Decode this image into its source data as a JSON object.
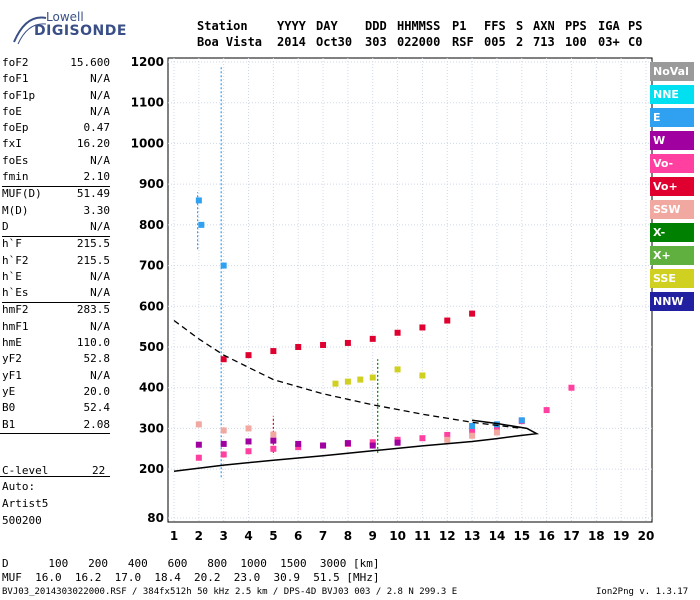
{
  "logo": {
    "top": "Lowell",
    "bottom": "DIGISONDE"
  },
  "header": {
    "labels": [
      "Station",
      "YYYY",
      "DAY",
      "DDD",
      "HHMMSS",
      "P1",
      "FFS",
      "S",
      "AXN",
      "PPS",
      "IGA",
      "PS"
    ],
    "values": [
      "Boa Vista",
      "2014",
      "Oct30",
      "303",
      "022000",
      "RSF",
      "005",
      "2",
      "713",
      "100",
      "03+",
      "C0"
    ]
  },
  "params": [
    {
      "k": "foF2",
      "v": "15.600"
    },
    {
      "k": "foF1",
      "v": "N/A"
    },
    {
      "k": "foF1p",
      "v": "N/A"
    },
    {
      "k": "foE",
      "v": "N/A"
    },
    {
      "k": "foEp",
      "v": "0.47"
    },
    {
      "k": "fxI",
      "v": "16.20"
    },
    {
      "k": "foEs",
      "v": "N/A"
    },
    {
      "k": "fmin",
      "v": "2.10"
    },
    {
      "k": "MUF(D)",
      "v": "51.49"
    },
    {
      "k": "M(D)",
      "v": "3.30"
    },
    {
      "k": "D",
      "v": "N/A"
    },
    {
      "k": "h`F",
      "v": "215.5"
    },
    {
      "k": "h`F2",
      "v": "215.5"
    },
    {
      "k": "h`E",
      "v": "N/A"
    },
    {
      "k": "h`Es",
      "v": "N/A"
    },
    {
      "k": "hmF2",
      "v": "283.5"
    },
    {
      "k": "hmF1",
      "v": "N/A"
    },
    {
      "k": "hmE",
      "v": "110.0"
    },
    {
      "k": "yF2",
      "v": "52.8"
    },
    {
      "k": "yF1",
      "v": "N/A"
    },
    {
      "k": "yE",
      "v": "20.0"
    },
    {
      "k": "B0",
      "v": "52.4"
    },
    {
      "k": "B1",
      "v": "2.08"
    }
  ],
  "clevel": {
    "k": "C-level",
    "v": "22"
  },
  "auto": [
    "Auto:",
    "Artist5",
    "500200"
  ],
  "legend": [
    {
      "label": "NoVal",
      "color": "#9a9a9a"
    },
    {
      "label": "NNE",
      "color": "#00e0f0"
    },
    {
      "label": "E",
      "color": "#30a0f0"
    },
    {
      "label": "W",
      "color": "#a000a0"
    },
    {
      "label": "Vo-",
      "color": "#ff40a0"
    },
    {
      "label": "Vo+",
      "color": "#e00030"
    },
    {
      "label": "SSW",
      "color": "#f0a8a0"
    },
    {
      "label": "X-",
      "color": "#008000"
    },
    {
      "label": "X+",
      "color": "#60b040"
    },
    {
      "label": "SSE",
      "color": "#d0d020"
    },
    {
      "label": "NNW",
      "color": "#2020a0"
    }
  ],
  "muf_table": {
    "d_label": "D",
    "d_values": [
      "100",
      "200",
      "400",
      "600",
      "800",
      "1000",
      "1500",
      "3000"
    ],
    "d_unit": "[km]",
    "m_label": "MUF",
    "m_values": [
      "16.0",
      "16.2",
      "17.0",
      "18.4",
      "20.2",
      "23.0",
      "30.9",
      "51.5"
    ],
    "m_unit": "[MHz]"
  },
  "footer": {
    "left": "BVJ03_2014303022000.RSF / 384fx512h 50 kHz 2.5 km / DPS-4D BVJ03 003 / 2.8 N 299.3 E",
    "right": "Ion2Png v. 1.3.17"
  },
  "chart_data": {
    "type": "scatter",
    "title": "",
    "xlabel": "",
    "ylabel": "",
    "xlim": [
      1,
      20
    ],
    "ylim": [
      80,
      1200
    ],
    "xticks": [
      1,
      2,
      3,
      4,
      5,
      6,
      7,
      8,
      9,
      10,
      11,
      12,
      13,
      14,
      15,
      16,
      17,
      18,
      19,
      20
    ],
    "yticks": [
      80,
      200,
      300,
      400,
      500,
      600,
      700,
      800,
      900,
      1000,
      1100,
      1200
    ],
    "grid": true,
    "series": [
      {
        "name": "Vo-",
        "points": [
          [
            2.0,
            228
          ],
          [
            3.0,
            236
          ],
          [
            4.0,
            244
          ],
          [
            5.0,
            250
          ],
          [
            6.0,
            254
          ],
          [
            7.0,
            258
          ],
          [
            8.0,
            262
          ],
          [
            9.0,
            266
          ],
          [
            10.0,
            272
          ],
          [
            11.0,
            276
          ],
          [
            12.0,
            284
          ],
          [
            13.0,
            292
          ],
          [
            14.0,
            302
          ],
          [
            15.0,
            318
          ],
          [
            16.0,
            345
          ],
          [
            17.0,
            400
          ]
        ]
      },
      {
        "name": "W",
        "points": [
          [
            2.0,
            260
          ],
          [
            3.0,
            262
          ],
          [
            4.0,
            268
          ],
          [
            5.0,
            270
          ],
          [
            6.0,
            262
          ],
          [
            7.0,
            258
          ],
          [
            8.0,
            264
          ],
          [
            9.0,
            258
          ],
          [
            10.0,
            265
          ]
        ]
      },
      {
        "name": "Vo+",
        "points": [
          [
            3.0,
            470
          ],
          [
            4.0,
            480
          ],
          [
            5.0,
            490
          ],
          [
            6.0,
            500
          ],
          [
            7.0,
            505
          ],
          [
            8.0,
            510
          ],
          [
            9.0,
            520
          ],
          [
            10.0,
            535
          ],
          [
            11.0,
            548
          ],
          [
            12.0,
            565
          ],
          [
            13.0,
            582
          ]
        ]
      },
      {
        "name": "SSE",
        "points": [
          [
            7.5,
            410
          ],
          [
            8.0,
            415
          ],
          [
            8.5,
            420
          ],
          [
            9.0,
            425
          ],
          [
            10.0,
            445
          ],
          [
            11.0,
            430
          ]
        ]
      },
      {
        "name": "SSW",
        "points": [
          [
            2.0,
            310
          ],
          [
            3.0,
            295
          ],
          [
            4.0,
            300
          ],
          [
            5.0,
            285
          ],
          [
            12.0,
            272
          ],
          [
            13.0,
            282
          ],
          [
            14.0,
            290
          ]
        ]
      },
      {
        "name": "E",
        "points": [
          [
            2.0,
            860
          ],
          [
            2.1,
            800
          ],
          [
            3.0,
            700
          ],
          [
            13.0,
            306
          ],
          [
            14.0,
            310
          ],
          [
            15.0,
            320
          ]
        ]
      }
    ],
    "profile_solid": [
      [
        1.0,
        195
      ],
      [
        3.0,
        210
      ],
      [
        5.0,
        222
      ],
      [
        7.0,
        233
      ],
      [
        9.0,
        245
      ],
      [
        11.0,
        257
      ],
      [
        13.0,
        268
      ],
      [
        14.0,
        275
      ],
      [
        15.0,
        283
      ],
      [
        15.6,
        287
      ],
      [
        15.2,
        300
      ],
      [
        14.0,
        312
      ],
      [
        13.0,
        320
      ]
    ],
    "profile_dashed": [
      [
        1.0,
        565
      ],
      [
        2.0,
        520
      ],
      [
        3.0,
        480
      ],
      [
        4.0,
        450
      ],
      [
        5.0,
        420
      ],
      [
        7.0,
        385
      ],
      [
        9.0,
        358
      ],
      [
        11.0,
        335
      ],
      [
        13.0,
        315
      ],
      [
        15.0,
        300
      ]
    ]
  }
}
